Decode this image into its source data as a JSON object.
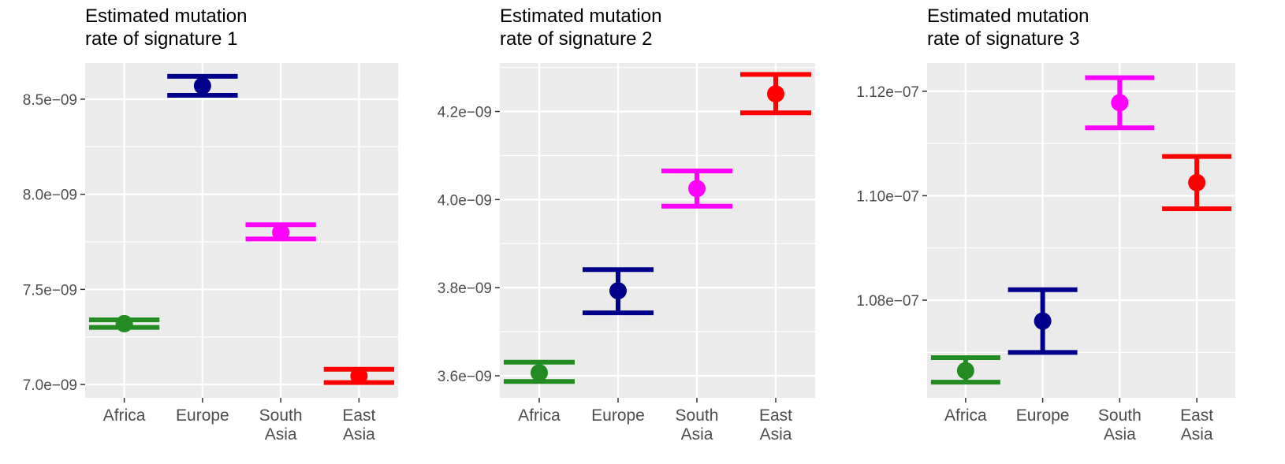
{
  "chart_data": [
    {
      "type": "scatter",
      "title_lines": [
        "Estimated mutation",
        "rate of signature 1"
      ],
      "categories": [
        [
          "Africa"
        ],
        [
          "Europe"
        ],
        [
          "South",
          "Asia"
        ],
        [
          "East",
          "Asia"
        ]
      ],
      "yticks": [
        7e-09,
        7.5e-09,
        8e-09,
        8.5e-09
      ],
      "ytick_labels": [
        "7.0e−09",
        "7.5e−09",
        "8.0e−09",
        "8.5e−09"
      ],
      "ylim": [
        6.93e-09,
        8.69e-09
      ],
      "points": [
        {
          "category": "Africa",
          "estimate": 7.32e-09,
          "lower": 7.3e-09,
          "upper": 7.34e-09,
          "color": "#228B22"
        },
        {
          "category": "Europe",
          "estimate": 8.57e-09,
          "lower": 8.52e-09,
          "upper": 8.62e-09,
          "color": "#00008B"
        },
        {
          "category": "South Asia",
          "estimate": 7.8e-09,
          "lower": 7.765e-09,
          "upper": 7.84e-09,
          "color": "#FF00FF"
        },
        {
          "category": "East Asia",
          "estimate": 7.045e-09,
          "lower": 7.01e-09,
          "upper": 7.08e-09,
          "color": "#FF0000"
        }
      ],
      "grid": true
    },
    {
      "type": "scatter",
      "title_lines": [
        "Estimated mutation",
        "rate of signature 2"
      ],
      "categories": [
        [
          "Africa"
        ],
        [
          "Europe"
        ],
        [
          "South",
          "Asia"
        ],
        [
          "East",
          "Asia"
        ]
      ],
      "yticks": [
        3.6e-09,
        3.8e-09,
        4e-09,
        4.2e-09
      ],
      "ytick_labels": [
        "3.6e−09",
        "3.8e−09",
        "4.0e−09",
        "4.2e−09"
      ],
      "ylim": [
        3.55e-09,
        4.31e-09
      ],
      "points": [
        {
          "category": "Africa",
          "estimate": 3.607e-09,
          "lower": 3.587e-09,
          "upper": 3.631e-09,
          "color": "#228B22"
        },
        {
          "category": "Europe",
          "estimate": 3.793e-09,
          "lower": 3.743e-09,
          "upper": 3.841e-09,
          "color": "#00008B"
        },
        {
          "category": "South Asia",
          "estimate": 4.025e-09,
          "lower": 3.985e-09,
          "upper": 4.065e-09,
          "color": "#FF00FF"
        },
        {
          "category": "East Asia",
          "estimate": 4.24e-09,
          "lower": 4.197e-09,
          "upper": 4.284e-09,
          "color": "#FF0000"
        }
      ],
      "grid": true
    },
    {
      "type": "scatter",
      "title_lines": [
        "Estimated mutation",
        "rate of signature 3"
      ],
      "categories": [
        [
          "Africa"
        ],
        [
          "Europe"
        ],
        [
          "South",
          "Asia"
        ],
        [
          "East",
          "Asia"
        ]
      ],
      "yticks": [
        1.08e-07,
        1.1e-07,
        1.12e-07
      ],
      "ytick_labels": [
        "1.08e−07",
        "1.10e−07",
        "1.12e−07"
      ],
      "ylim": [
        1.0613e-07,
        1.1254e-07
      ],
      "points": [
        {
          "category": "Africa",
          "estimate": 1.0665e-07,
          "lower": 1.0643e-07,
          "upper": 1.069e-07,
          "color": "#228B22"
        },
        {
          "category": "Europe",
          "estimate": 1.076e-07,
          "lower": 1.07e-07,
          "upper": 1.082e-07,
          "color": "#00008B"
        },
        {
          "category": "South Asia",
          "estimate": 1.1178e-07,
          "lower": 1.113e-07,
          "upper": 1.1226e-07,
          "color": "#FF00FF"
        },
        {
          "category": "East Asia",
          "estimate": 1.1025e-07,
          "lower": 1.0975e-07,
          "upper": 1.1075e-07,
          "color": "#FF0000"
        }
      ],
      "grid": true
    }
  ]
}
